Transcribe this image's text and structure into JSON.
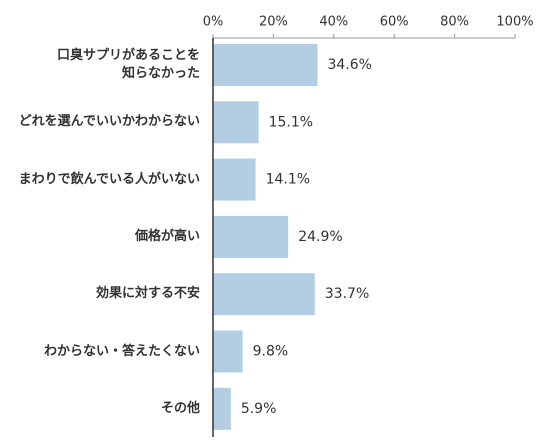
{
  "chart_data": {
    "type": "bar",
    "orientation": "horizontal",
    "categories": [
      "口臭サプリがあることを\n知らなかった",
      "どれを選んでいいかわからない",
      "まわりで飲んでいる人がいない",
      "価格が高い",
      "効果に対する不安",
      "わからない・答えたくない",
      "その他"
    ],
    "values": [
      34.6,
      15.1,
      14.1,
      24.9,
      33.7,
      9.8,
      5.9
    ],
    "value_labels": [
      "34.6%",
      "15.1%",
      "14.1%",
      "24.9%",
      "33.7%",
      "9.8%",
      "5.9%"
    ],
    "color": "#b3cee3",
    "xlim": [
      0,
      100
    ],
    "xticks": [
      {
        "value": 0,
        "label": "0%"
      },
      {
        "value": 20,
        "label": "20%"
      },
      {
        "value": 40,
        "label": "40%"
      },
      {
        "value": 60,
        "label": "60%"
      },
      {
        "value": 80,
        "label": "80%"
      },
      {
        "value": 100,
        "label": "100%"
      }
    ]
  }
}
